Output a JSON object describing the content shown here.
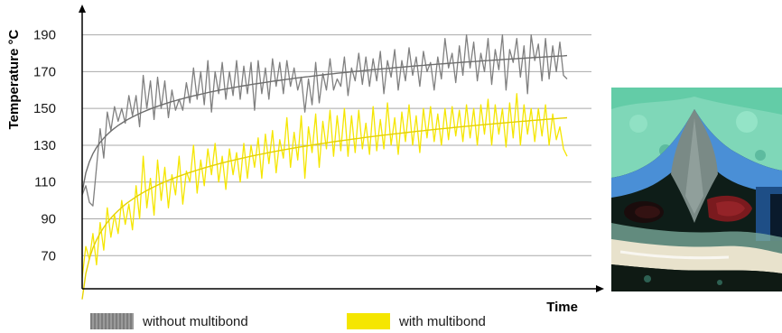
{
  "chart_data": {
    "type": "line",
    "title": "",
    "xlabel": "Time",
    "ylabel": "Temperature °C",
    "ylim": [
      52,
      205
    ],
    "yticks": [
      70,
      90,
      110,
      130,
      150,
      170,
      190
    ],
    "grid": true,
    "legend_position": "bottom",
    "x": [
      0,
      1,
      2,
      3,
      4,
      5,
      6,
      7,
      8,
      9,
      10,
      11,
      12,
      13,
      14,
      15,
      16,
      17,
      18,
      19,
      20,
      21,
      22,
      23,
      24,
      25,
      26,
      27,
      28,
      29,
      30,
      31,
      32,
      33,
      34,
      35,
      36,
      37,
      38,
      39,
      40,
      41,
      42,
      43,
      44,
      45,
      46,
      47,
      48,
      49,
      50,
      51,
      52,
      53,
      54,
      55,
      56,
      57,
      58,
      59,
      60,
      61,
      62,
      63,
      64,
      65,
      66,
      67,
      68,
      69,
      70,
      71,
      72,
      73,
      74,
      75,
      76,
      77,
      78,
      79,
      80,
      81,
      82,
      83,
      84,
      85,
      86,
      87,
      88,
      89,
      90,
      91,
      92,
      93,
      94,
      95,
      96,
      97,
      98,
      99,
      100,
      101,
      102,
      103,
      104,
      105,
      106,
      107,
      108,
      109,
      110,
      111,
      112,
      113,
      114,
      115,
      116,
      117,
      118,
      119,
      120,
      121,
      122,
      123,
      124,
      125,
      126,
      127,
      128,
      129,
      130,
      131,
      132,
      133,
      134,
      135
    ],
    "series": [
      {
        "name": "without multibond",
        "color": "#808080",
        "values": [
          103,
          108,
          99,
          97,
          118,
          139,
          123,
          148,
          138,
          151,
          143,
          150,
          142,
          157,
          146,
          157,
          140,
          168,
          150,
          165,
          144,
          167,
          150,
          165,
          145,
          160,
          149,
          155,
          149,
          164,
          153,
          172,
          155,
          170,
          152,
          176,
          148,
          170,
          158,
          175,
          155,
          170,
          157,
          176,
          155,
          173,
          158,
          175,
          149,
          176,
          158,
          172,
          155,
          177,
          162,
          175,
          158,
          176,
          162,
          172,
          160,
          167,
          148,
          166,
          152,
          175,
          153,
          169,
          160,
          177,
          160,
          166,
          162,
          178,
          157,
          172,
          165,
          180,
          163,
          178,
          162,
          177,
          165,
          181,
          158,
          176,
          167,
          182,
          160,
          176,
          165,
          183,
          168,
          178,
          162,
          181,
          170,
          175,
          160,
          178,
          166,
          188,
          172,
          180,
          164,
          184,
          168,
          190,
          172,
          186,
          165,
          180,
          170,
          188,
          163,
          182,
          171,
          190,
          160,
          182,
          175,
          188,
          167,
          184,
          158,
          190,
          176,
          185,
          165,
          188,
          166,
          184,
          170,
          186,
          168,
          166
        ]
      },
      {
        "name": "with multibond",
        "color": "#f5e600",
        "values": [
          58,
          75,
          68,
          82,
          65,
          88,
          73,
          96,
          80,
          92,
          82,
          100,
          87,
          98,
          84,
          108,
          90,
          124,
          96,
          112,
          92,
          122,
          100,
          118,
          96,
          114,
          103,
          124,
          98,
          116,
          110,
          130,
          104,
          122,
          108,
          128,
          114,
          131,
          110,
          124,
          106,
          128,
          114,
          126,
          110,
          131,
          112,
          130,
          118,
          134,
          112,
          136,
          120,
          138,
          115,
          133,
          123,
          145,
          118,
          137,
          122,
          146,
          112,
          140,
          126,
          147,
          118,
          143,
          128,
          149,
          124,
          146,
          127,
          150,
          124,
          146,
          126,
          149,
          128,
          142,
          125,
          151,
          127,
          144,
          128,
          153,
          130,
          145,
          125,
          148,
          132,
          152,
          130,
          146,
          126,
          150,
          134,
          151,
          132,
          147,
          130,
          150,
          133,
          151,
          135,
          149,
          132,
          152,
          134,
          150,
          130,
          152,
          136,
          155,
          130,
          152,
          136,
          150,
          129,
          153,
          134,
          158,
          130,
          152,
          136,
          150,
          132,
          150,
          135,
          152,
          130,
          147,
          133,
          140,
          128,
          124
        ]
      }
    ]
  },
  "legend": {
    "without": "without multibond",
    "with": "with multibond"
  }
}
